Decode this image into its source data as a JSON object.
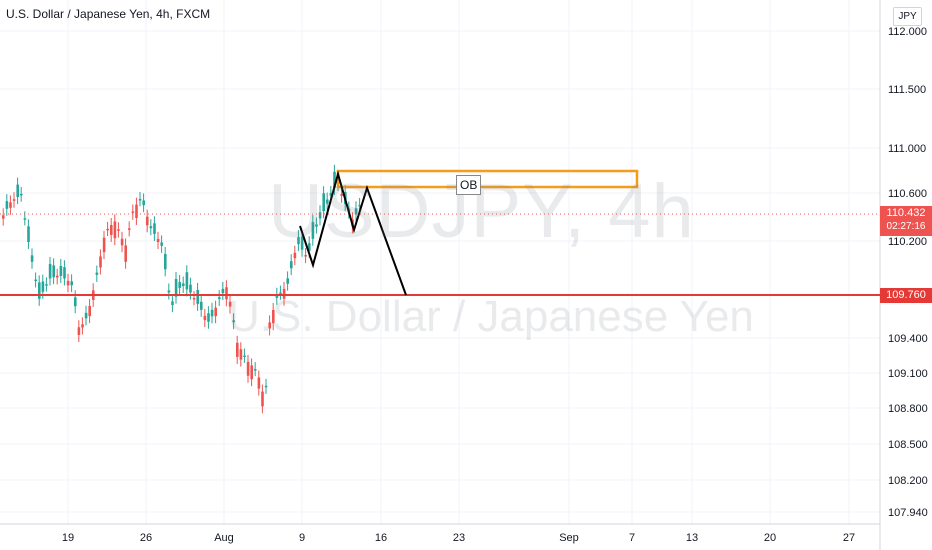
{
  "header": {
    "title": "U.S. Dollar / Japanese Yen, 4h, FXCM"
  },
  "watermark": {
    "ticker": "USDJPY, 4h",
    "name": "U.S. Dollar / Japanese Yen"
  },
  "price_axis": {
    "currency": "JPY",
    "ticks": [
      "112.000",
      "111.500",
      "111.000",
      "110.600",
      "110.200",
      "109.400",
      "109.100",
      "108.800",
      "108.500",
      "108.200",
      "107.940"
    ],
    "current_price": "110.432",
    "countdown": "02:27:16",
    "support_price": "109.760"
  },
  "time_axis": {
    "ticks": [
      "19",
      "26",
      "Aug",
      "9",
      "16",
      "23",
      "Sep",
      "7",
      "13",
      "20",
      "27"
    ]
  },
  "annotations": {
    "order_block_label": "OB"
  },
  "colors": {
    "up_candle": "#26a69a",
    "down_candle": "#ef5350",
    "support_line": "#e53935",
    "order_block": "#f59c1a",
    "projection": "#000000"
  }
}
